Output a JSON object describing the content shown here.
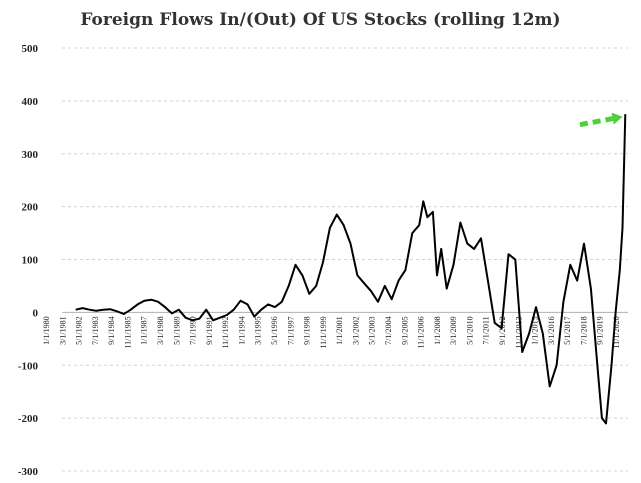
{
  "chart_data": {
    "type": "line",
    "title": "Foreign Flows In/(Out) Of US Stocks (rolling 12m)",
    "xlabel": "",
    "ylabel": "",
    "ylim": [
      -300,
      500
    ],
    "yticks": [
      500,
      400,
      300,
      200,
      100,
      0,
      -100,
      -200,
      -300
    ],
    "grid": "horizontal dashed",
    "x_tick_labels": [
      "1/1/1980",
      "3/1/1981",
      "5/1/1982",
      "7/1/1983",
      "9/1/1984",
      "11/1/1985",
      "1/1/1987",
      "3/1/1988",
      "5/1/1989",
      "7/1/1990",
      "9/1/1991",
      "11/1/1992",
      "1/1/1994",
      "3/1/1995",
      "5/1/1996",
      "7/1/1997",
      "9/1/1998",
      "11/1/1999",
      "1/1/2001",
      "3/1/2002",
      "5/1/2003",
      "7/1/2004",
      "9/1/2005",
      "11/1/2006",
      "1/1/2008",
      "3/1/2009",
      "5/1/2010",
      "7/1/2011",
      "9/1/2012",
      "11/1/2013",
      "1/1/2015",
      "3/1/2016",
      "5/1/2017",
      "7/1/2018",
      "9/1/2019",
      "11/1/2020"
    ],
    "series": [
      {
        "color": "#000000",
        "x": [
          1981.0,
          1981.5,
          1982.0,
          1982.5,
          1983.0,
          1983.5,
          1984.0,
          1984.5,
          1985.0,
          1985.5,
          1986.0,
          1986.5,
          1987.0,
          1987.5,
          1988.0,
          1988.5,
          1989.0,
          1989.5,
          1990.0,
          1990.5,
          1991.0,
          1991.5,
          1992.0,
          1992.5,
          1993.0,
          1993.5,
          1994.0,
          1994.5,
          1995.0,
          1995.5,
          1996.0,
          1996.5,
          1997.0,
          1997.5,
          1998.0,
          1998.5,
          1999.0,
          1999.5,
          2000.0,
          2000.5,
          2001.0,
          2001.5,
          2002.0,
          2002.5,
          2003.0,
          2003.5,
          2004.0,
          2004.5,
          2005.0,
          2005.5,
          2006.0,
          2006.3,
          2006.6,
          2007.0,
          2007.3,
          2007.6,
          2008.0,
          2008.5,
          2009.0,
          2009.5,
          2010.0,
          2010.5,
          2011.0,
          2011.5,
          2012.0,
          2012.5,
          2013.0,
          2013.5,
          2014.0,
          2014.5,
          2015.0,
          2015.5,
          2016.0,
          2016.5,
          2017.0,
          2017.5,
          2018.0,
          2018.5,
          2019.0,
          2019.3,
          2019.6,
          2020.0,
          2020.3,
          2020.6,
          2020.8,
          2021.0
        ],
        "y": [
          5,
          8,
          5,
          3,
          5,
          6,
          2,
          -3,
          5,
          15,
          22,
          24,
          20,
          10,
          -2,
          5,
          -10,
          -15,
          -12,
          5,
          -15,
          -10,
          -5,
          5,
          22,
          15,
          -8,
          5,
          15,
          10,
          20,
          50,
          90,
          70,
          35,
          50,
          95,
          160,
          185,
          165,
          130,
          70,
          55,
          40,
          20,
          50,
          25,
          60,
          80,
          150,
          165,
          210,
          180,
          190,
          70,
          120,
          45,
          90,
          170,
          130,
          120,
          140,
          60,
          -20,
          -30,
          110,
          100,
          -75,
          -40,
          10,
          -40,
          -140,
          -100,
          20,
          90,
          60,
          130,
          45,
          -110,
          -200,
          -210,
          -100,
          0,
          80,
          160,
          375
        ]
      }
    ],
    "annotations": [
      {
        "type": "arrow",
        "color": "#4cd137",
        "style": "dashed",
        "from": [
          2017.7,
          355
        ],
        "to": [
          2020.8,
          370
        ]
      }
    ]
  }
}
